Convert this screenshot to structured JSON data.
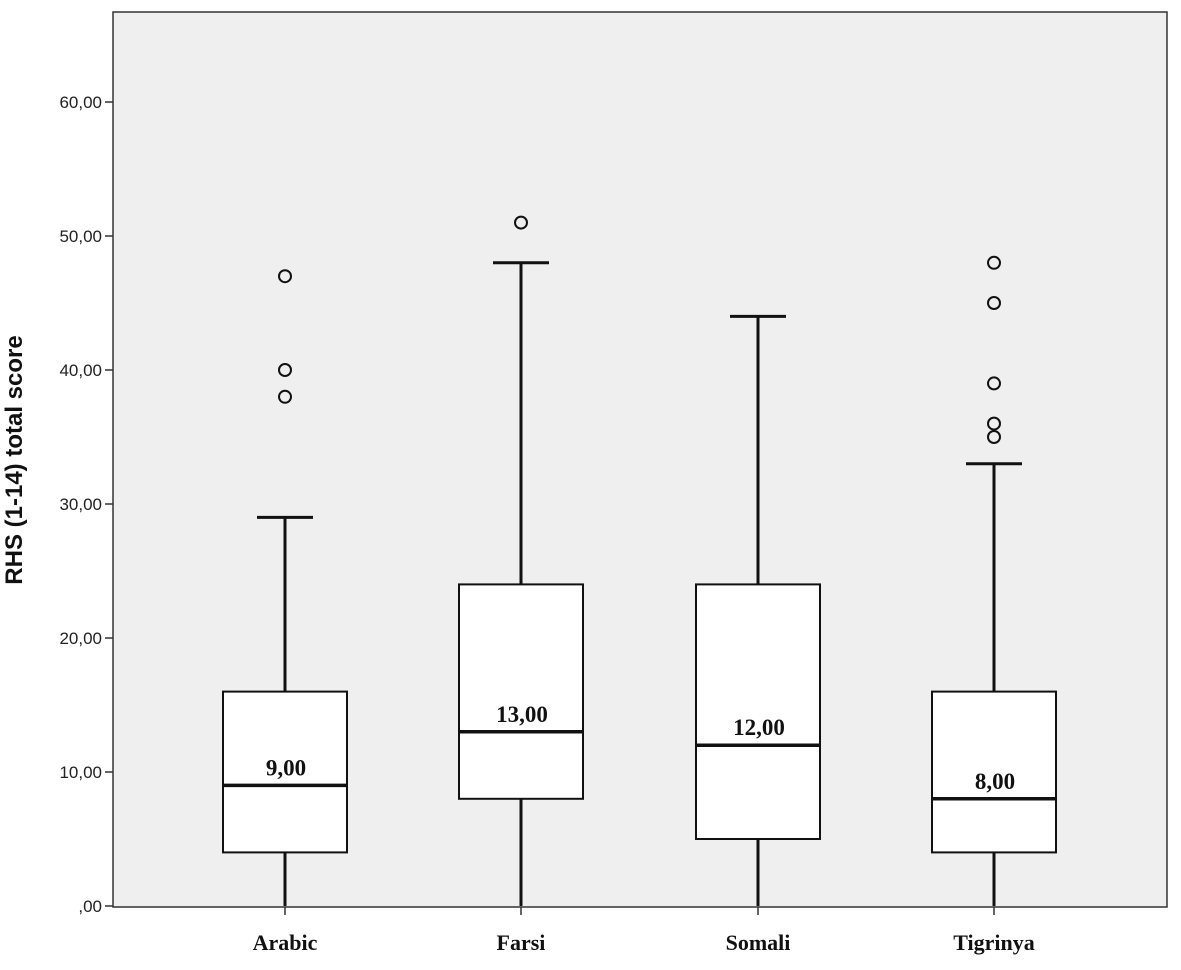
{
  "chart_data": {
    "type": "boxplot",
    "ylabel": "RHS (1-14) total score",
    "xlabel": "",
    "ylim": [
      0,
      66
    ],
    "yticks": [
      0,
      10,
      20,
      30,
      40,
      50,
      60
    ],
    "ytick_labels": [
      ",00",
      "10,00",
      "20,00",
      "30,00",
      "40,00",
      "50,00",
      "60,00"
    ],
    "grid": false,
    "plot_background": "#efefef",
    "categories": [
      "Arabic",
      "Farsi",
      "Somali",
      "Tigrinya"
    ],
    "boxes": [
      {
        "category": "Arabic",
        "whisker_low": 0,
        "q1": 4,
        "median": 9,
        "q3": 16,
        "whisker_high": 29,
        "outliers": [
          38,
          40,
          47
        ],
        "median_label": "9,00"
      },
      {
        "category": "Farsi",
        "whisker_low": 0,
        "q1": 8,
        "median": 13,
        "q3": 24,
        "whisker_high": 48,
        "outliers": [
          51
        ],
        "median_label": "13,00"
      },
      {
        "category": "Somali",
        "whisker_low": 0,
        "q1": 5,
        "median": 12,
        "q3": 24,
        "whisker_high": 44,
        "outliers": [],
        "median_label": "12,00"
      },
      {
        "category": "Tigrinya",
        "whisker_low": 0,
        "q1": 4,
        "median": 8,
        "q3": 16,
        "whisker_high": 33,
        "outliers": [
          35,
          36,
          39,
          45,
          48
        ],
        "median_label": "8,00"
      }
    ]
  }
}
